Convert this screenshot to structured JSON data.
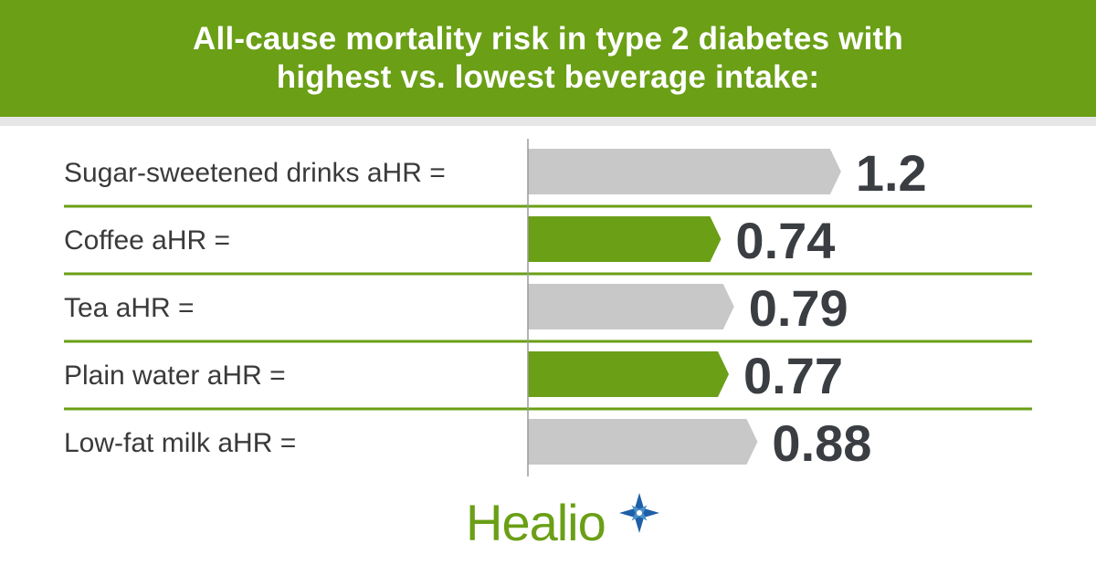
{
  "chart_data": {
    "type": "bar",
    "orientation": "horizontal",
    "title_lines": [
      "All-cause mortality risk in type 2 diabetes with",
      "highest vs. lowest beverage intake:"
    ],
    "categories": [
      "Sugar-sweetened drinks aHR =",
      "Coffee aHR =",
      "Tea aHR =",
      "Plain water aHR =",
      "Low-fat milk aHR ="
    ],
    "values": [
      1.2,
      0.74,
      0.79,
      0.77,
      0.88
    ],
    "value_labels": [
      "1.2",
      "0.74",
      "0.79",
      "0.77",
      "0.88"
    ],
    "xlim": [
      0,
      1.4
    ],
    "bar_colors": [
      "#c8c8c8",
      "#6a9f16",
      "#c8c8c8",
      "#6a9f16",
      "#c8c8c8"
    ],
    "separator_color": "#6a9f16",
    "axis_color": "#9a9a9a",
    "grid": false,
    "legend": "none"
  },
  "logo": {
    "text": "Healio",
    "icon": "star-icon",
    "color": "#6a9f16",
    "star_color": "#1f5fa8"
  }
}
